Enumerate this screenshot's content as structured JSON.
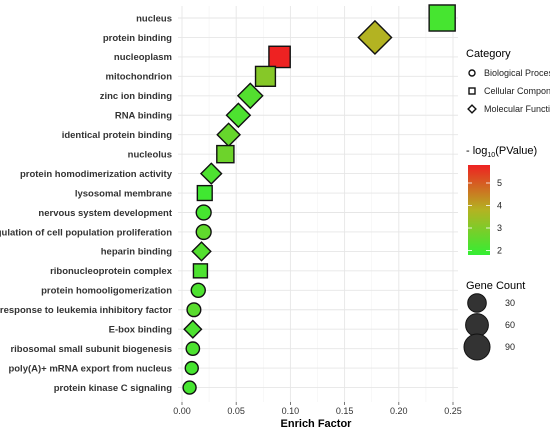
{
  "chart_data": {
    "type": "scatter",
    "xlabel": "Enrich Factor",
    "ylabel": "",
    "xlim": [
      0,
      0.25
    ],
    "x_ticks": [
      "0.00",
      "0.05",
      "0.10",
      "0.15",
      "0.20",
      "0.25"
    ],
    "grid": true,
    "legend_placement": "right",
    "color_scale": {
      "title_parts": [
        "- log",
        "10",
        "(PValue)"
      ],
      "range": [
        1.8,
        5.8
      ],
      "ticks": [
        "2",
        "3",
        "4",
        "5"
      ],
      "low_color": "#33ee33",
      "high_color": "#ee2222"
    },
    "shape_legend": {
      "title": "Category",
      "items": [
        {
          "label": "Biological Process",
          "shape": "circle"
        },
        {
          "label": "Cellular Component",
          "shape": "square"
        },
        {
          "label": "Molecular Function",
          "shape": "diamond"
        }
      ]
    },
    "size_legend": {
      "title": "Gene Count",
      "items": [
        "30",
        "60",
        "90"
      ]
    },
    "points": [
      {
        "term": "nucleus",
        "x": 0.24,
        "pvalue": 2.1,
        "count": 90,
        "category": "Cellular Component"
      },
      {
        "term": "protein binding",
        "x": 0.178,
        "pvalue": 3.8,
        "count": 85,
        "category": "Molecular Function"
      },
      {
        "term": "nucleoplasm",
        "x": 0.09,
        "pvalue": 5.8,
        "count": 48,
        "category": "Cellular Component"
      },
      {
        "term": "mitochondrion",
        "x": 0.077,
        "pvalue": 3.1,
        "count": 38,
        "category": "Cellular Component"
      },
      {
        "term": "zinc ion binding",
        "x": 0.063,
        "pvalue": 2.3,
        "count": 33,
        "category": "Molecular Function"
      },
      {
        "term": "RNA binding",
        "x": 0.052,
        "pvalue": 2.2,
        "count": 28,
        "category": "Molecular Function"
      },
      {
        "term": "identical protein binding",
        "x": 0.043,
        "pvalue": 2.6,
        "count": 24,
        "category": "Molecular Function"
      },
      {
        "term": "nucleolus",
        "x": 0.04,
        "pvalue": 2.7,
        "count": 22,
        "category": "Cellular Component"
      },
      {
        "term": "protein homodimerization activity",
        "x": 0.027,
        "pvalue": 2.2,
        "count": 16,
        "category": "Molecular Function"
      },
      {
        "term": "lysosomal membrane",
        "x": 0.021,
        "pvalue": 2.0,
        "count": 12,
        "category": "Cellular Component"
      },
      {
        "term": "nervous system development",
        "x": 0.02,
        "pvalue": 2.1,
        "count": 12,
        "category": "Biological Process"
      },
      {
        "term": "negative regulation of cell population proliferation",
        "x": 0.02,
        "pvalue": 2.5,
        "count": 12,
        "category": "Biological Process"
      },
      {
        "term": "heparin binding",
        "x": 0.018,
        "pvalue": 2.3,
        "count": 10,
        "category": "Molecular Function"
      },
      {
        "term": "ribonucleoprotein complex",
        "x": 0.017,
        "pvalue": 2.2,
        "count": 9,
        "category": "Cellular Component"
      },
      {
        "term": "protein homooligomerization",
        "x": 0.015,
        "pvalue": 2.2,
        "count": 9,
        "category": "Biological Process"
      },
      {
        "term": "cellular response to leukemia inhibitory factor",
        "x": 0.011,
        "pvalue": 2.4,
        "count": 8,
        "category": "Biological Process"
      },
      {
        "term": "E-box binding",
        "x": 0.01,
        "pvalue": 2.2,
        "count": 7,
        "category": "Molecular Function"
      },
      {
        "term": "ribosomal small subunit biogenesis",
        "x": 0.01,
        "pvalue": 2.2,
        "count": 7,
        "category": "Biological Process"
      },
      {
        "term": "poly(A)+ mRNA export from nucleus",
        "x": 0.009,
        "pvalue": 2.1,
        "count": 6,
        "category": "Biological Process"
      },
      {
        "term": "protein kinase C signaling",
        "x": 0.007,
        "pvalue": 2.1,
        "count": 6,
        "category": "Biological Process"
      }
    ]
  }
}
